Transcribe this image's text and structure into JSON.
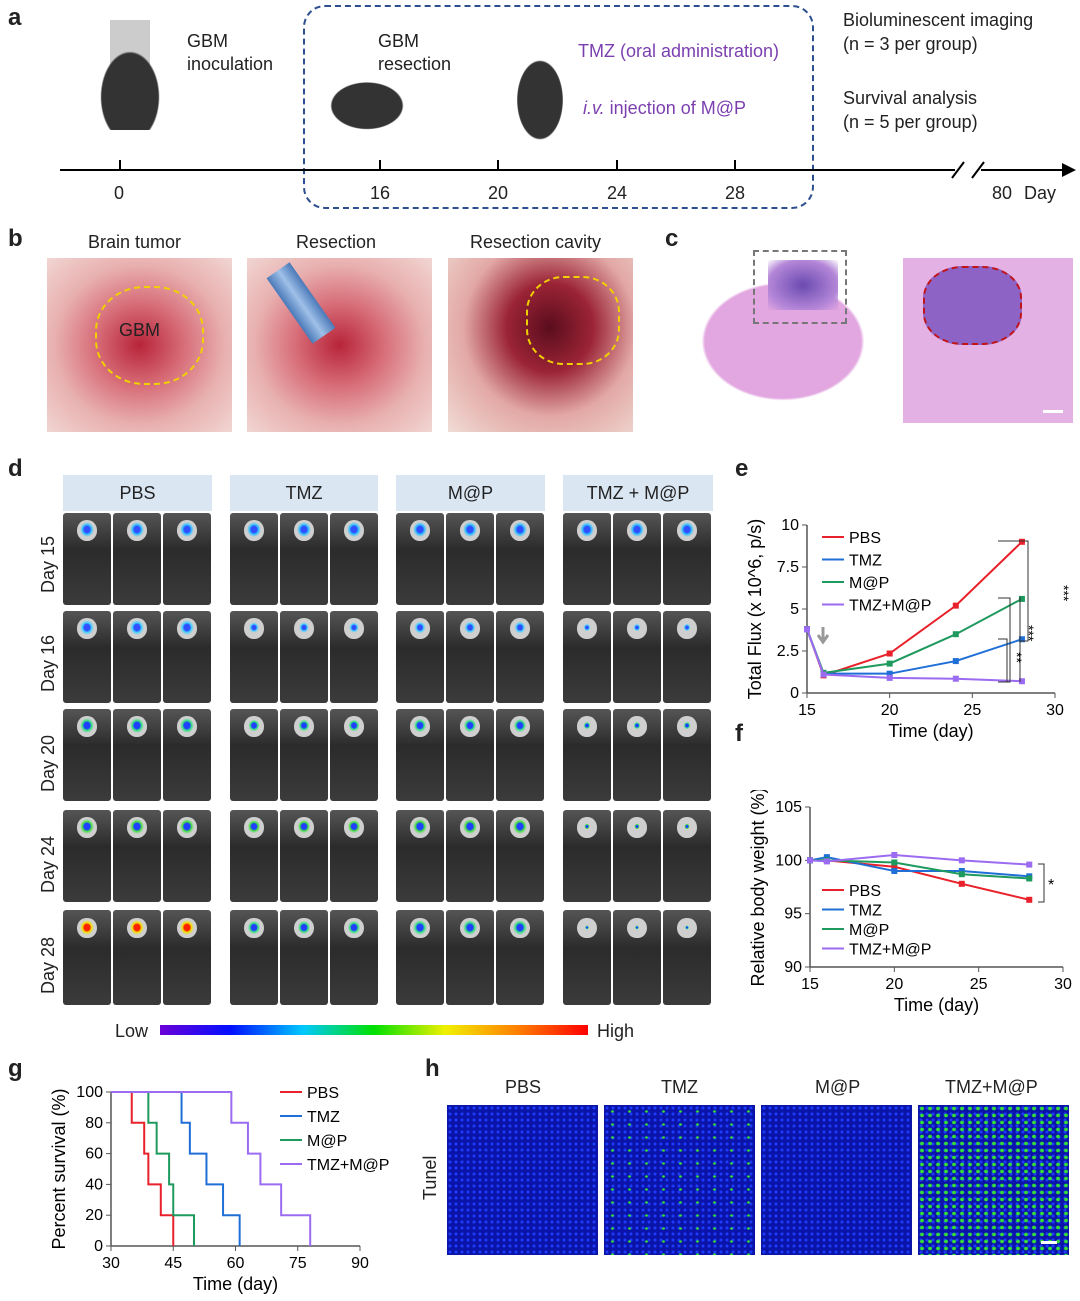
{
  "panels": {
    "a": "a",
    "b": "b",
    "c": "c",
    "d": "d",
    "e": "e",
    "f": "f",
    "g": "g",
    "h": "h"
  },
  "timeline": {
    "gbm_inoculation": "GBM\ninoculation",
    "gbm_resection": "GBM\nresection",
    "tmz": "TMZ (oral administration)",
    "iv_prefix": "i.v.",
    "iv_rest": " injection of M@P",
    "bli": "Bioluminescent imaging",
    "bli_n": "(n = 3 per group)",
    "survival": "Survival analysis",
    "survival_n": "(n = 5 per group)",
    "ticks": [
      "0",
      "16",
      "20",
      "24",
      "28",
      "80"
    ],
    "unit": "Day"
  },
  "photos": {
    "titles": [
      "Brain tumor",
      "Resection",
      "Resection cavity"
    ],
    "gbm_label": "GBM"
  },
  "imaging": {
    "groups": [
      "PBS",
      "TMZ",
      "M@P",
      "TMZ + M@P"
    ],
    "days": [
      "Day 15",
      "Day 16",
      "Day 20",
      "Day 24",
      "Day 28"
    ],
    "low": "Low",
    "high": "High"
  },
  "tunel": {
    "groups": [
      "PBS",
      "TMZ",
      "M@P",
      "TMZ+M@P"
    ],
    "label": "Tunel"
  },
  "colors": {
    "PBS": "#e8212a",
    "TMZ": "#1f6fd6",
    "M@P": "#1f9a5e",
    "TMZ+M@P": "#9b6bf2"
  },
  "chart_data": [
    {
      "id": "e",
      "type": "line",
      "xlabel": "Time (day)",
      "ylabel": "Total Flux (x 10^6, p/s)",
      "xlim": [
        15,
        30
      ],
      "ylim": [
        0,
        10
      ],
      "xticks": [
        "15",
        "20",
        "25",
        "30"
      ],
      "yticks": [
        "0",
        "2.5",
        "5",
        "7.5",
        "10"
      ],
      "x": [
        15,
        16,
        20,
        24,
        28
      ],
      "series": [
        {
          "name": "PBS",
          "values": [
            3.8,
            1.05,
            2.35,
            5.2,
            9.0
          ]
        },
        {
          "name": "TMZ",
          "values": [
            3.8,
            1.15,
            1.15,
            1.9,
            3.2
          ]
        },
        {
          "name": "M@P",
          "values": [
            3.8,
            1.2,
            1.75,
            3.5,
            5.6
          ]
        },
        {
          "name": "TMZ+M@P",
          "values": [
            3.8,
            1.1,
            0.9,
            0.85,
            0.7
          ]
        }
      ],
      "annotations": [
        "**",
        "***",
        "***"
      ],
      "legend": "top-left"
    },
    {
      "id": "f",
      "type": "line",
      "xlabel": "Time (day)",
      "ylabel": "Relative body weight (%)",
      "xlim": [
        15,
        30
      ],
      "ylim": [
        90,
        105
      ],
      "xticks": [
        "15",
        "20",
        "25",
        "30"
      ],
      "yticks": [
        "90",
        "95",
        "100",
        "105"
      ],
      "x": [
        15,
        16,
        20,
        24,
        28
      ],
      "series": [
        {
          "name": "PBS",
          "values": [
            100,
            100,
            99.4,
            97.8,
            96.3
          ]
        },
        {
          "name": "TMZ",
          "values": [
            100,
            100.3,
            99.0,
            99.0,
            98.5
          ]
        },
        {
          "name": "M@P",
          "values": [
            100,
            100,
            99.8,
            98.7,
            98.3
          ]
        },
        {
          "name": "TMZ+M@P",
          "values": [
            100,
            99.9,
            100.5,
            100.0,
            99.6
          ]
        }
      ],
      "annotations": [
        "*"
      ],
      "legend": "bottom-left"
    },
    {
      "id": "g",
      "type": "line",
      "step": true,
      "xlabel": "Time (day)",
      "ylabel": "Percent survival (%)",
      "xlim": [
        30,
        90
      ],
      "ylim": [
        0,
        100
      ],
      "xticks": [
        "30",
        "45",
        "60",
        "75",
        "90"
      ],
      "yticks": [
        "0",
        "20",
        "40",
        "60",
        "80",
        "100"
      ],
      "series": [
        {
          "name": "PBS",
          "x": [
            30,
            35,
            38,
            39,
            42,
            45
          ],
          "values": [
            100,
            80,
            60,
            40,
            20,
            0
          ]
        },
        {
          "name": "TMZ",
          "x": [
            30,
            47,
            49,
            53,
            57,
            61
          ],
          "values": [
            100,
            80,
            60,
            40,
            20,
            0
          ]
        },
        {
          "name": "M@P",
          "x": [
            30,
            39,
            41,
            44,
            45,
            50
          ],
          "values": [
            100,
            80,
            60,
            40,
            20,
            0
          ]
        },
        {
          "name": "TMZ+M@P",
          "x": [
            30,
            59,
            63,
            66,
            71,
            78
          ],
          "values": [
            100,
            80,
            60,
            40,
            20,
            0
          ]
        }
      ],
      "legend": "top-right"
    }
  ]
}
